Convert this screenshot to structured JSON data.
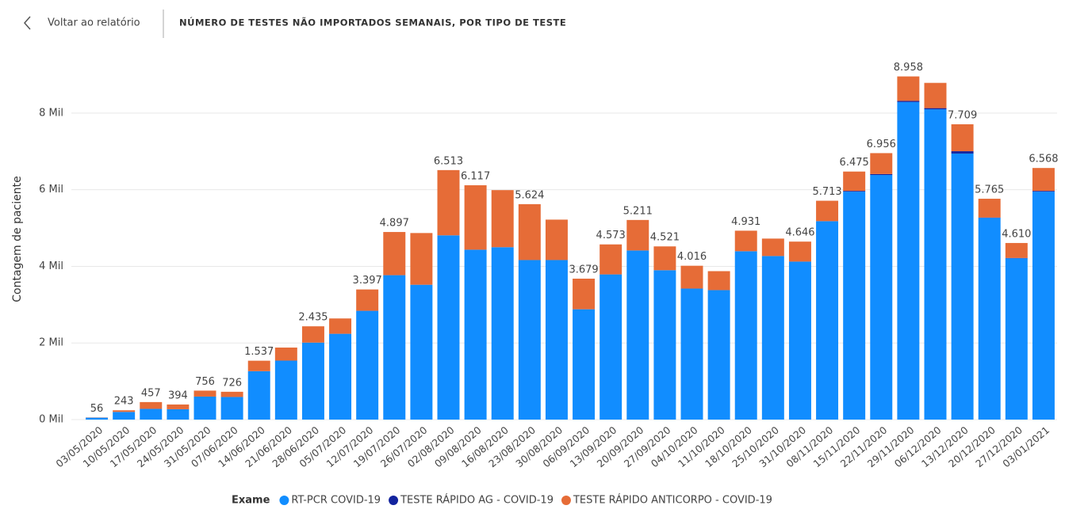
{
  "header": {
    "back": "Voltar ao relatório"
  },
  "chart_data": {
    "type": "stacked_bar",
    "title": "NÚMERO DE TESTES NÃO IMPORTADOS SEMANAIS, POR TIPO DE TESTE",
    "y_label": "Contagem de paciente",
    "legend_title": "Exame",
    "categories": [
      "03/05/2020",
      "10/05/2020",
      "17/05/2020",
      "24/05/2020",
      "31/05/2020",
      "07/06/2020",
      "14/06/2020",
      "21/06/2020",
      "28/06/2020",
      "05/07/2020",
      "12/07/2020",
      "19/07/2020",
      "26/07/2020",
      "02/08/2020",
      "09/08/2020",
      "16/08/2020",
      "23/08/2020",
      "30/08/2020",
      "06/09/2020",
      "13/09/2020",
      "20/09/2020",
      "27/09/2020",
      "04/10/2020",
      "11/10/2020",
      "18/10/2020",
      "25/10/2020",
      "31/10/2020",
      "08/11/2020",
      "15/11/2020",
      "22/11/2020",
      "29/11/2020",
      "06/12/2020",
      "13/12/2020",
      "20/12/2020",
      "27/12/2020",
      "03/01/2021"
    ],
    "series": [
      {
        "name": "RT-PCR COVID-19",
        "color": "#118dff",
        "values": [
          50,
          200,
          280,
          270,
          600,
          590,
          1264,
          1540,
          2010,
          2240,
          2840,
          3770,
          3520,
          4810,
          4435,
          4500,
          4165,
          4165,
          2880,
          3790,
          4415,
          3900,
          3420,
          3380,
          4395,
          4270,
          4125,
          5180,
          5950,
          6385,
          8290,
          8100,
          6945,
          5265,
          4210,
          5950
        ]
      },
      {
        "name": "TESTE RÁPIDO AG - COVID-19",
        "color": "#12239e",
        "values": [
          0,
          0,
          0,
          0,
          0,
          0,
          0,
          0,
          0,
          0,
          0,
          0,
          0,
          0,
          0,
          0,
          0,
          0,
          0,
          0,
          0,
          0,
          0,
          0,
          0,
          0,
          0,
          0,
          20,
          25,
          30,
          30,
          60,
          10,
          10,
          20
        ]
      },
      {
        "name": "TESTE RÁPIDO ANTICORPO - COVID-19",
        "color": "#e66c37",
        "values": [
          6,
          43,
          177,
          124,
          156,
          136,
          273,
          340,
          425,
          400,
          557,
          1127,
          1350,
          1703,
          1682,
          1490,
          1459,
          1055,
          799,
          783,
          796,
          621,
          596,
          495,
          536,
          455,
          521,
          533,
          505,
          546,
          638,
          660,
          704,
          490,
          390,
          598
        ]
      }
    ],
    "totals": {
      "values": [
        56,
        243,
        457,
        394,
        756,
        726,
        1537,
        null,
        2435,
        null,
        3397,
        4897,
        null,
        6513,
        6117,
        null,
        5624,
        null,
        3679,
        4573,
        5211,
        4521,
        4016,
        null,
        4931,
        null,
        4646,
        5713,
        6475,
        6956,
        8958,
        null,
        7709,
        5765,
        4610,
        6568
      ],
      "value_labels": [
        "56",
        "243",
        "457",
        "394",
        "756",
        "726",
        "1.537",
        null,
        "2.435",
        null,
        "3.397",
        "4.897",
        null,
        "6.513",
        "6.117",
        null,
        "5.624",
        null,
        "3.679",
        "4.573",
        "5.211",
        "4.521",
        "4.016",
        null,
        "4.931",
        null,
        "4.646",
        "5.713",
        "6.475",
        "6.956",
        "8.958",
        null,
        "7.709",
        "5.765",
        "4.610",
        "6.568"
      ]
    },
    "ylim": [
      0,
      9300
    ],
    "yticks": [
      {
        "value": 0,
        "label": "0 Mil"
      },
      {
        "value": 2000,
        "label": "2 Mil"
      },
      {
        "value": 4000,
        "label": "4 Mil"
      },
      {
        "value": 6000,
        "label": "6 Mil"
      },
      {
        "value": 8000,
        "label": "8 Mil"
      }
    ],
    "grid": true
  }
}
